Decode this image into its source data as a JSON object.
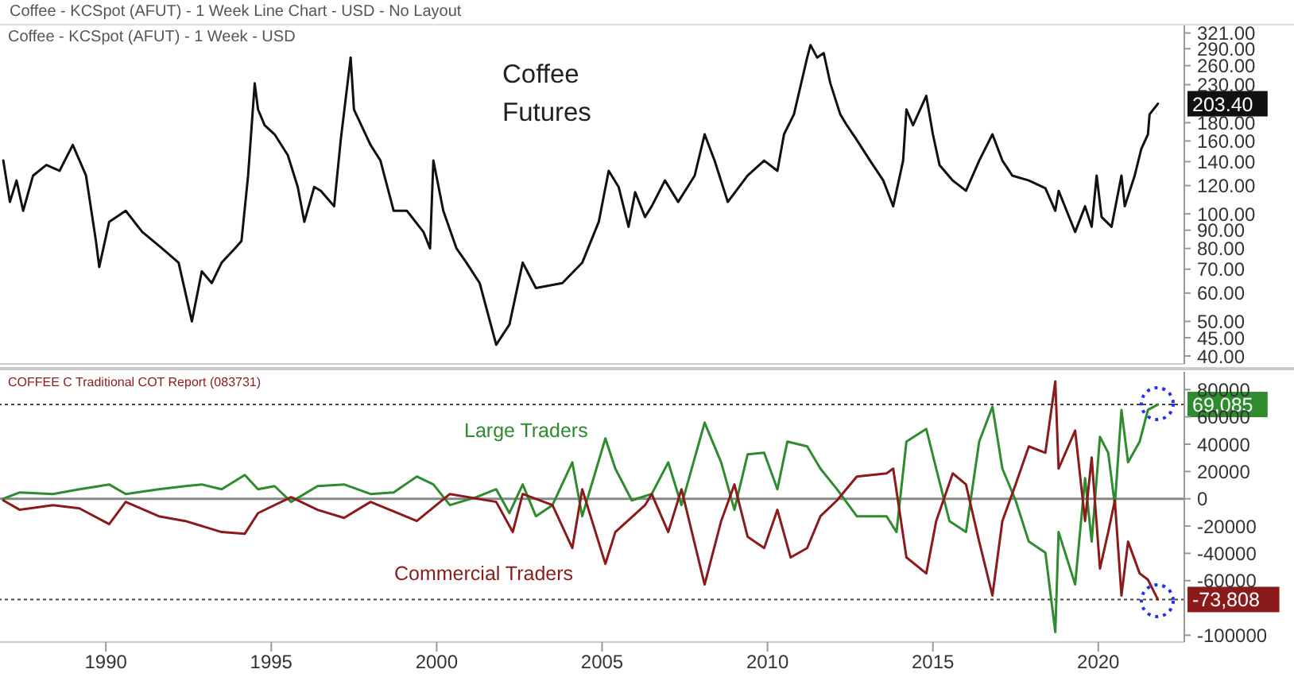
{
  "chart_data": [
    {
      "type": "line",
      "title": "Coffee Futures",
      "subtitle": "Coffee - KCSpot (AFUT) - 1 Week - USD",
      "annotations": [
        "Coffee - KCSpot (AFUT) - 1 Week Line Chart - USD - No Layout",
        {
          "text": "203.40",
          "x": 2021.8,
          "y": 203.4
        }
      ],
      "log": "y",
      "grid": false,
      "legend": false,
      "tick_labels": "y",
      "xlim": [
        1986.8,
        2022.6
      ],
      "ylim": [
        38,
        337
      ],
      "yticks": [
        {
          "value": 321,
          "label": "321.00"
        },
        {
          "value": 290,
          "label": "290.00"
        },
        {
          "value": 260,
          "label": "260.00"
        },
        {
          "value": 230,
          "label": "230.00"
        },
        {
          "value": 180,
          "label": "180.00"
        },
        {
          "value": 160,
          "label": "160.00"
        },
        {
          "value": 140,
          "label": "140.00"
        },
        {
          "value": 120,
          "label": "120.00"
        },
        {
          "value": 100,
          "label": "100.00"
        },
        {
          "value": 90,
          "label": "90.00"
        },
        {
          "value": 80,
          "label": "80.00"
        },
        {
          "value": 70,
          "label": "70.00"
        },
        {
          "value": 60,
          "label": "60.00"
        },
        {
          "value": 50,
          "label": "50.00"
        },
        {
          "value": 45,
          "label": "45.00"
        },
        {
          "value": 40,
          "label": "40.00"
        }
      ],
      "series": [
        {
          "color": "#111111",
          "x": [
            1986.9,
            1987.1,
            1987.3,
            1987.5,
            1987.8,
            1988.2,
            1988.6,
            1989.0,
            1989.4,
            1989.7,
            1989.8,
            1990.1,
            1990.6,
            1991.1,
            1991.7,
            1992.2,
            1992.6,
            1992.9,
            1993.2,
            1993.5,
            1993.9,
            1994.1,
            1994.3,
            1994.5,
            1994.6,
            1994.8,
            1995.1,
            1995.5,
            1995.8,
            1996.0,
            1996.3,
            1996.5,
            1996.9,
            1997.1,
            1997.4,
            1997.5,
            1998.0,
            1998.3,
            1998.7,
            1999.1,
            1999.6,
            1999.8,
            1999.9,
            2000.2,
            2000.6,
            2000.9,
            2001.3,
            2001.8,
            2002.2,
            2002.6,
            2003.0,
            2003.8,
            2004.4,
            2004.9,
            2005.2,
            2005.5,
            2005.8,
            2006.0,
            2006.3,
            2006.5,
            2006.9,
            2007.3,
            2007.8,
            2008.1,
            2008.4,
            2008.8,
            2009.4,
            2009.9,
            2010.3,
            2010.5,
            2010.8,
            2011.2,
            2011.3,
            2011.5,
            2011.7,
            2011.9,
            2012.2,
            2012.4,
            2012.7,
            2013.1,
            2013.5,
            2013.8,
            2014.1,
            2014.2,
            2014.4,
            2014.8,
            2015.0,
            2015.2,
            2015.6,
            2016.0,
            2016.4,
            2016.8,
            2017.1,
            2017.4,
            2017.9,
            2018.4,
            2018.7,
            2018.8,
            2019.3,
            2019.6,
            2019.8,
            2019.95,
            2020.1,
            2020.4,
            2020.7,
            2020.8,
            2021.1,
            2021.3,
            2021.5,
            2021.55,
            2021.8
          ],
          "values": [
            141,
            108,
            124,
            102,
            128,
            137,
            132,
            156,
            128,
            84,
            71,
            95,
            102,
            89,
            80,
            73,
            50,
            69,
            64,
            73,
            80,
            84,
            128,
            232,
            196,
            177,
            167,
            146,
            119,
            95,
            119,
            116,
            105,
            161,
            274,
            196,
            156,
            141,
            102,
            102,
            89,
            80,
            141,
            102,
            80,
            73,
            64,
            43,
            49,
            73,
            62,
            64,
            73,
            95,
            132,
            119,
            92,
            115,
            98,
            105,
            124,
            108,
            128,
            167,
            141,
            108,
            128,
            141,
            132,
            167,
            190,
            274,
            297,
            274,
            282,
            232,
            190,
            177,
            161,
            141,
            124,
            105,
            141,
            196,
            177,
            214,
            167,
            137,
            124,
            116,
            141,
            167,
            141,
            128,
            124,
            118,
            102,
            116,
            89,
            105,
            92,
            128,
            98,
            92,
            128,
            105,
            128,
            152,
            167,
            190,
            203.4
          ]
        }
      ]
    },
    {
      "type": "line",
      "subtitle": "COFFEE C Traditional COT Report (083731)",
      "grid": false,
      "legend": false,
      "xlim": [
        1986.8,
        2022.6
      ],
      "xticks": [
        1990,
        1995,
        2000,
        2005,
        2010,
        2015,
        2020
      ],
      "ylim": [
        -105000,
        93000
      ],
      "yticks": [
        80000,
        60000,
        40000,
        20000,
        0,
        -20000,
        -40000,
        -60000,
        -100000
      ],
      "ref_lines": [
        {
          "axis": "y",
          "value": 0,
          "color": "#888888",
          "line_style": "solid"
        },
        {
          "axis": "y",
          "value": 69085,
          "label": "69,085",
          "color": "#444444",
          "line_style": "dotted"
        },
        {
          "axis": "y",
          "value": -73808,
          "label": "-73,808",
          "color": "#444444",
          "line_style": "dotted"
        }
      ],
      "series": [
        {
          "name": "Large Traders",
          "color": "#2e8b2e",
          "x": [
            1986.9,
            1987.4,
            1988.4,
            1989.2,
            1990.1,
            1990.6,
            1991.6,
            1992.4,
            1992.9,
            1993.5,
            1994.2,
            1994.6,
            1995.1,
            1995.6,
            1996.4,
            1997.2,
            1998.0,
            1998.7,
            1999.4,
            1999.9,
            2000.4,
            2001.2,
            2001.8,
            2002.2,
            2002.6,
            2003.0,
            2003.5,
            2004.1,
            2004.4,
            2005.1,
            2005.4,
            2005.9,
            2006.5,
            2007.0,
            2007.4,
            2008.1,
            2008.6,
            2009.0,
            2009.4,
            2009.9,
            2010.3,
            2010.6,
            2011.2,
            2011.6,
            2012.1,
            2012.7,
            2013.6,
            2013.9,
            2014.2,
            2014.8,
            2015.1,
            2015.5,
            2016.0,
            2016.4,
            2016.8,
            2017.1,
            2017.5,
            2017.9,
            2018.4,
            2018.7,
            2018.8,
            2019.3,
            2019.6,
            2019.8,
            2020.05,
            2020.3,
            2020.5,
            2020.7,
            2020.9,
            2021.25,
            2021.5,
            2021.8
          ],
          "values": [
            0,
            4650,
            3500,
            7000,
            10500,
            3500,
            7000,
            9300,
            10500,
            7000,
            17400,
            7000,
            9300,
            -2300,
            9300,
            10500,
            3500,
            4650,
            16300,
            10500,
            -4650,
            1200,
            7000,
            -10500,
            10500,
            -12800,
            -4650,
            26700,
            -12800,
            44200,
            22100,
            -1200,
            3500,
            26700,
            -4650,
            55800,
            26700,
            -8100,
            32600,
            33700,
            7000,
            41900,
            38400,
            22100,
            7000,
            -12800,
            -12800,
            -24400,
            41900,
            51200,
            22100,
            -16300,
            -24400,
            41900,
            67500,
            22100,
            -1200,
            -31400,
            -39500,
            -97700,
            -24400,
            -62800,
            15100,
            -31400,
            45400,
            33700,
            -4650,
            65100,
            26700,
            41900,
            65100,
            69085
          ]
        },
        {
          "name": "Commercial Traders",
          "color": "#8b1a1a",
          "x": [
            1986.9,
            1987.4,
            1988.4,
            1989.2,
            1990.1,
            1990.6,
            1991.6,
            1992.4,
            1993.5,
            1994.2,
            1994.6,
            1995.6,
            1996.4,
            1997.2,
            1998.0,
            1999.4,
            2000.4,
            2001.8,
            2002.3,
            2002.6,
            2003.5,
            2004.1,
            2004.4,
            2005.1,
            2005.4,
            2006.3,
            2006.5,
            2007.0,
            2007.4,
            2008.1,
            2008.6,
            2009.0,
            2009.4,
            2009.9,
            2010.3,
            2010.7,
            2011.2,
            2011.6,
            2012.1,
            2012.7,
            2013.6,
            2013.8,
            2014.2,
            2014.8,
            2015.1,
            2015.6,
            2016.0,
            2016.4,
            2016.8,
            2017.1,
            2017.5,
            2017.9,
            2018.4,
            2018.7,
            2018.8,
            2019.3,
            2019.6,
            2019.8,
            2020.05,
            2020.3,
            2020.5,
            2020.7,
            2020.9,
            2021.25,
            2021.5,
            2021.8
          ],
          "values": [
            -1200,
            -8100,
            -4650,
            -7000,
            -18600,
            -2300,
            -12800,
            -16300,
            -24400,
            -25600,
            -10500,
            1200,
            -8100,
            -14000,
            -2300,
            -16300,
            3500,
            -2300,
            -24400,
            3500,
            -4650,
            -36100,
            7000,
            -47700,
            -24400,
            -4650,
            3500,
            -24400,
            7000,
            -62800,
            -16300,
            10500,
            -27900,
            -36100,
            -8100,
            -43000,
            -36100,
            -12800,
            -1200,
            16300,
            18600,
            22100,
            -43000,
            -54700,
            -16300,
            18600,
            10500,
            -31400,
            -70900,
            -16300,
            10500,
            38400,
            33700,
            86000,
            22100,
            50000,
            -16300,
            30200,
            -51200,
            -24400,
            -1200,
            -70900,
            -31400,
            -54700,
            -59300,
            -73808
          ]
        }
      ]
    }
  ]
}
